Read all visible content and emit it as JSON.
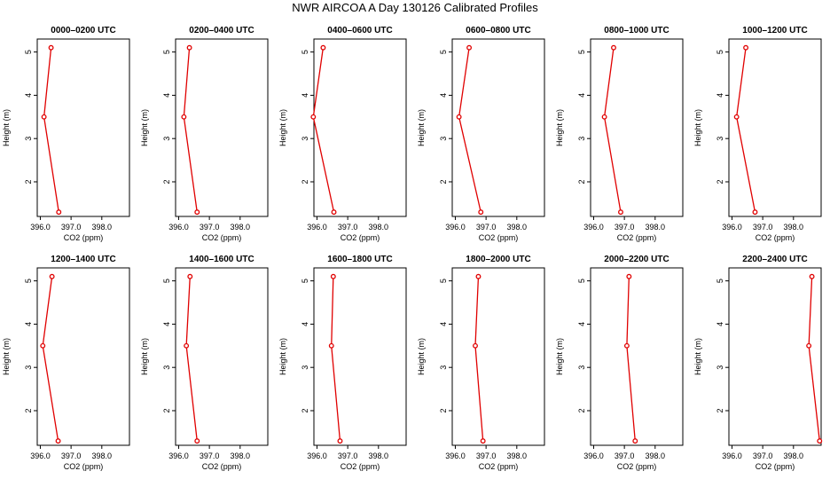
{
  "title": "NWR AIRCOA A  Day 130126  Calibrated Profiles",
  "colors": {
    "profile": "#e00000",
    "axis": "#000000",
    "background": "#ffffff"
  },
  "chart_data": {
    "type": "line",
    "xlabel": "CO2 (ppm)",
    "ylabel": "Height (m)",
    "xlim": [
      395.9,
      398.9
    ],
    "ylim": [
      1.2,
      5.3
    ],
    "xticks": [
      396.0,
      397.0,
      398.0
    ],
    "xtick_labels": [
      "396.0",
      "397.0",
      "398.0"
    ],
    "yticks": [
      2,
      3,
      4,
      5
    ],
    "ytick_labels": [
      "2",
      "3",
      "4",
      "5"
    ],
    "heights": [
      5.1,
      3.5,
      1.3
    ],
    "grid": false,
    "panels": [
      {
        "title": "0000–0200 UTC",
        "values": [
          396.35,
          396.12,
          396.6
        ]
      },
      {
        "title": "0200–0400 UTC",
        "values": [
          396.35,
          396.17,
          396.6
        ]
      },
      {
        "title": "0400–0600 UTC",
        "values": [
          396.2,
          395.88,
          396.55
        ]
      },
      {
        "title": "0600–0800 UTC",
        "values": [
          396.45,
          396.12,
          396.83
        ]
      },
      {
        "title": "0800–1000 UTC",
        "values": [
          396.65,
          396.35,
          396.88
        ]
      },
      {
        "title": "1000–1200 UTC",
        "values": [
          396.45,
          396.15,
          396.75
        ]
      },
      {
        "title": "1200–1400 UTC",
        "values": [
          396.38,
          396.08,
          396.58
        ]
      },
      {
        "title": "1400–1600 UTC",
        "values": [
          396.37,
          396.25,
          396.6
        ]
      },
      {
        "title": "1600–1800 UTC",
        "values": [
          396.53,
          396.47,
          396.75
        ]
      },
      {
        "title": "1800–2000 UTC",
        "values": [
          396.75,
          396.65,
          396.9
        ]
      },
      {
        "title": "2000–2200 UTC",
        "values": [
          397.15,
          397.08,
          397.35
        ]
      },
      {
        "title": "2200–2400 UTC",
        "values": [
          398.6,
          398.5,
          398.85
        ]
      }
    ]
  }
}
